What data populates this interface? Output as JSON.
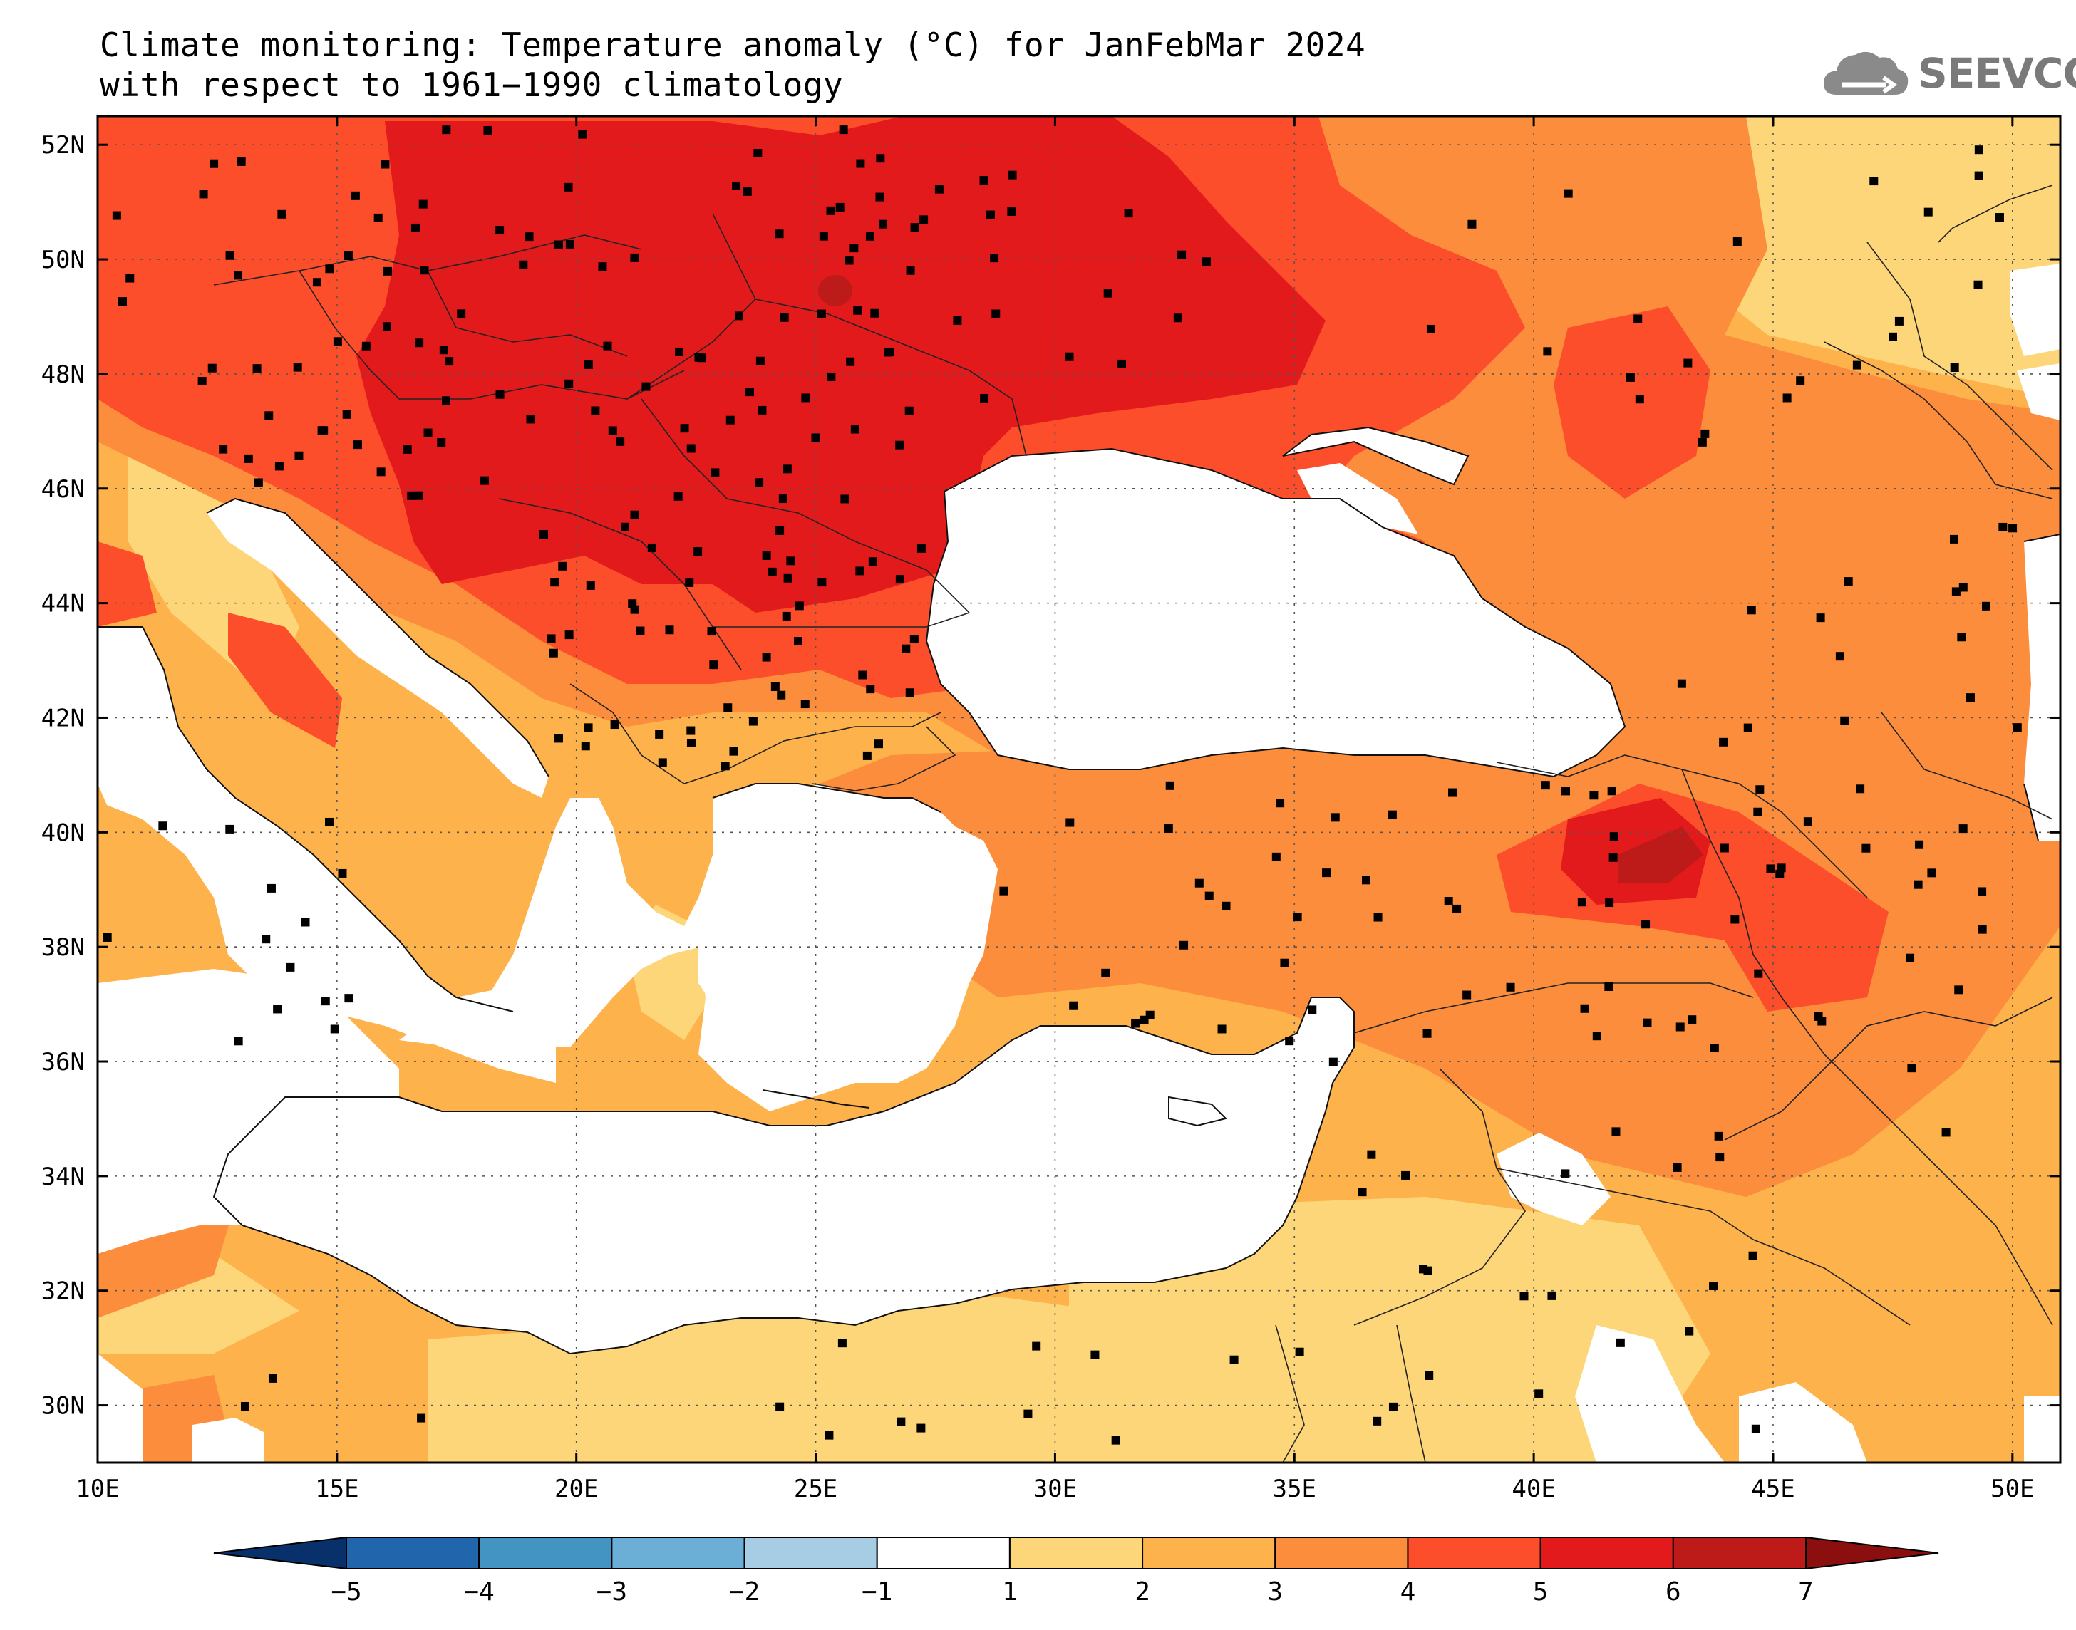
{
  "title": {
    "line1": "Climate monitoring: Temperature anomaly (°C) for JanFebMar 2024",
    "line2": "with respect to 1961−1990 climatology"
  },
  "logo": {
    "text": "SEEVCCC",
    "icon": "cloud-icon"
  },
  "map": {
    "lon_range": [
      10,
      51
    ],
    "lat_range": [
      29,
      52.5
    ],
    "lon_ticks": [
      "10E",
      "15E",
      "20E",
      "25E",
      "30E",
      "35E",
      "40E",
      "45E",
      "50E"
    ],
    "lat_ticks": [
      "30N",
      "32N",
      "34N",
      "36N",
      "38N",
      "40N",
      "42N",
      "44N",
      "46N",
      "48N",
      "50N",
      "52N"
    ]
  },
  "colorbar": {
    "labels": [
      "−5",
      "−4",
      "−3",
      "−2",
      "−1",
      "1",
      "2",
      "3",
      "4",
      "5",
      "6",
      "7"
    ],
    "colors": [
      "#08306b",
      "#2166ac",
      "#4393c3",
      "#6baed6",
      "#a6cde3",
      "#ffffff",
      "#fdd67a",
      "#fdb24b",
      "#fc8d3c",
      "#fc4e2a",
      "#e31a1c",
      "#bd1a1a",
      "#8b0f0f"
    ]
  },
  "colors": {
    "anom_1_2": "#fdd67a",
    "anom_2_3": "#fdb24b",
    "anom_3_4": "#fc8d3c",
    "anom_4_5": "#fc4e2a",
    "anom_5_6": "#e31a1c",
    "anom_6_7": "#bd1a1a"
  }
}
